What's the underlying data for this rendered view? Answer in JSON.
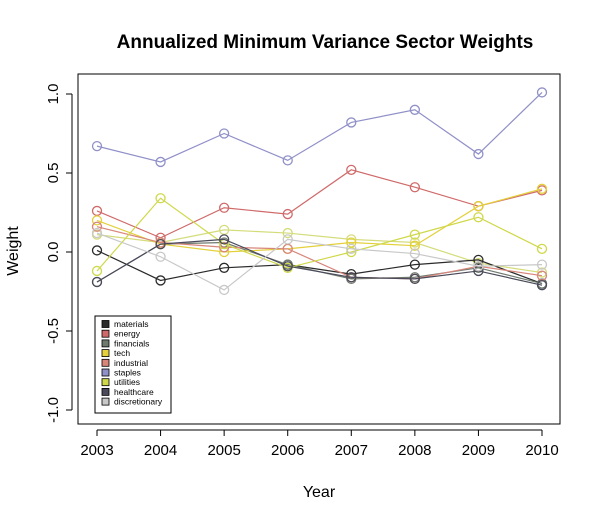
{
  "chart_data": {
    "type": "line",
    "title": "Annualized Minimum Variance Sector Weights",
    "xlabel": "Year",
    "ylabel": "Weight",
    "x": [
      "2003",
      "2004",
      "2005",
      "2006",
      "2007",
      "2008",
      "2009",
      "2010"
    ],
    "ylim": [
      -1.0,
      1.0
    ],
    "yticks": [
      -1.0,
      -0.5,
      0.0,
      0.5,
      1.0
    ],
    "ytick_labels": [
      "-1.0",
      "-0.5",
      "0.0",
      "0.5",
      "1.0"
    ],
    "grid": false,
    "legend_position": "bottom-left",
    "series": [
      {
        "name": "materials",
        "color": "#2b2b2b",
        "values": [
          0.01,
          -0.18,
          -0.1,
          -0.08,
          -0.14,
          -0.08,
          -0.05,
          -0.2
        ]
      },
      {
        "name": "energy",
        "color": "#d06a6a",
        "values": [
          0.26,
          0.09,
          0.28,
          0.24,
          0.52,
          0.41,
          0.29,
          0.39
        ]
      },
      {
        "name": "financials",
        "color": "#6f7a6f",
        "values": [
          -0.19,
          0.05,
          0.06,
          -0.08,
          -0.17,
          -0.16,
          -0.1,
          -0.2
        ]
      },
      {
        "name": "tech",
        "color": "#e3d03a",
        "values": [
          0.2,
          0.05,
          0.0,
          0.02,
          0.06,
          0.04,
          0.29,
          0.4
        ]
      },
      {
        "name": "industrial",
        "color": "#d8857a",
        "values": [
          0.16,
          0.06,
          0.03,
          0.02,
          -0.16,
          -0.17,
          -0.09,
          -0.15
        ]
      },
      {
        "name": "staples",
        "color": "#9090c8",
        "values": [
          0.67,
          0.57,
          0.75,
          0.58,
          0.82,
          0.9,
          0.62,
          1.01
        ]
      },
      {
        "name": "utilities",
        "color": "#cfd84a",
        "values": [
          -0.12,
          0.34,
          0.05,
          -0.1,
          0.0,
          0.11,
          0.22,
          0.02
        ]
      },
      {
        "name": "healthcare",
        "color": "#4a4a5a",
        "values": [
          -0.19,
          0.05,
          0.08,
          -0.09,
          -0.16,
          -0.17,
          -0.12,
          -0.21
        ]
      },
      {
        "name": "discretionary",
        "color": "#c8c8c8",
        "values": [
          0.12,
          -0.03,
          -0.24,
          0.08,
          0.02,
          -0.01,
          -0.09,
          -0.08
        ]
      }
    ],
    "extra_series": [
      {
        "color": "#d4dc7a",
        "values": [
          0.11,
          0.06,
          0.14,
          0.12,
          0.08,
          0.06,
          -0.07,
          -0.13
        ]
      }
    ]
  }
}
